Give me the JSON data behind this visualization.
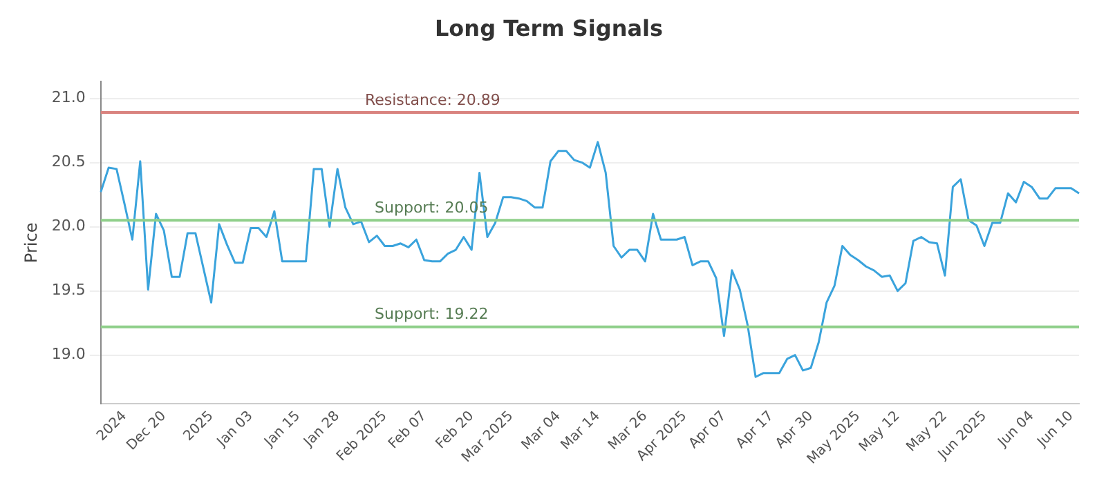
{
  "chart_data": {
    "type": "line",
    "title": "Long Term Signals",
    "ylabel": "Price",
    "categories": [
      null,
      null,
      null,
      "2024",
      null,
      null,
      null,
      null,
      "Dec 20",
      null,
      null,
      null,
      null,
      null,
      "2025",
      null,
      null,
      null,
      null,
      "Jan 03",
      null,
      null,
      null,
      null,
      null,
      "Jan 15",
      null,
      null,
      null,
      null,
      "Jan 28",
      null,
      null,
      null,
      null,
      null,
      "Feb 2025",
      null,
      null,
      null,
      null,
      "Feb 07",
      null,
      null,
      null,
      null,
      null,
      "Feb 20",
      null,
      null,
      null,
      null,
      "Mar 2025",
      null,
      null,
      null,
      null,
      null,
      "Mar 04",
      null,
      null,
      null,
      null,
      "Mar 14",
      null,
      null,
      null,
      null,
      null,
      "Mar 26",
      null,
      null,
      null,
      null,
      "Apr 2025",
      null,
      null,
      null,
      null,
      "Apr 07",
      null,
      null,
      null,
      null,
      null,
      "Apr 17",
      null,
      null,
      null,
      null,
      "Apr 30",
      null,
      null,
      null,
      null,
      null,
      "May 2025",
      null,
      null,
      null,
      null,
      "May 12",
      null,
      null,
      null,
      null,
      null,
      "May 22",
      null,
      null,
      null,
      null,
      "Jun 2025",
      null,
      null,
      null,
      null,
      null,
      "Jun 04",
      null,
      null,
      null,
      null,
      "Jun 10",
      null
    ],
    "series": [
      {
        "color": "#3aa3dc",
        "values": [
          20.27,
          20.46,
          20.45,
          20.18,
          19.9,
          20.51,
          19.51,
          20.1,
          19.97,
          19.61,
          19.61,
          19.95,
          19.95,
          19.68,
          19.41,
          20.02,
          19.86,
          19.72,
          19.72,
          19.99,
          19.99,
          19.92,
          20.12,
          19.73,
          19.73,
          19.73,
          19.73,
          20.45,
          20.45,
          20.0,
          20.45,
          20.15,
          20.02,
          20.04,
          19.88,
          19.93,
          19.85,
          19.85,
          19.87,
          19.84,
          19.9,
          19.74,
          19.73,
          19.73,
          19.79,
          19.82,
          19.92,
          19.82,
          20.42,
          19.92,
          20.03,
          20.23,
          20.23,
          20.22,
          20.2,
          20.15,
          20.15,
          20.51,
          20.59,
          20.59,
          20.52,
          20.5,
          20.46,
          20.66,
          20.42,
          19.85,
          19.76,
          19.82,
          19.82,
          19.73,
          20.1,
          19.9,
          19.9,
          19.9,
          19.92,
          19.7,
          19.73,
          19.73,
          19.6,
          19.15,
          19.66,
          19.51,
          19.23,
          18.83,
          18.86,
          18.86,
          18.86,
          18.97,
          19.0,
          18.88,
          18.9,
          19.1,
          19.41,
          19.54,
          19.85,
          19.78,
          19.74,
          19.69,
          19.66,
          19.61,
          19.62,
          19.5,
          19.56,
          19.89,
          19.92,
          19.88,
          19.87,
          19.62,
          20.31,
          20.37,
          20.05,
          20.01,
          19.85,
          20.03,
          20.03,
          20.26,
          20.19,
          20.35,
          20.31,
          20.22,
          20.22,
          20.3,
          20.3,
          20.3,
          20.26
        ]
      }
    ],
    "ylim": [
      18.62,
      21.13
    ],
    "yticks": [
      {
        "value": 19,
        "label": "19.0"
      },
      19.5,
      {
        "value": 20,
        "label": "20.0"
      },
      20.5,
      {
        "value": 21,
        "label": "21.0"
      }
    ],
    "grid": "y",
    "legend": false,
    "marker": "none",
    "line_style": "solid",
    "ref_lines": [
      {
        "axis": "y",
        "value": 20.89,
        "label": "Resistance: 20.89",
        "color": "#d9837f"
      },
      {
        "axis": "y",
        "value": 20.05,
        "label": "Support: 20.05",
        "color": "#8fcf8a"
      },
      {
        "axis": "y",
        "value": 19.22,
        "label": "Support: 19.22",
        "color": "#8fcf8a"
      }
    ]
  }
}
